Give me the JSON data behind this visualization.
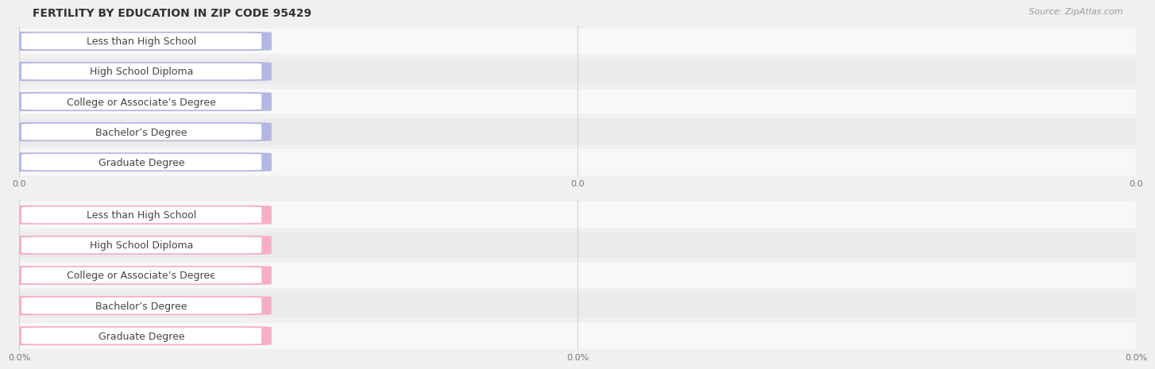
{
  "title": "FERTILITY BY EDUCATION IN ZIP CODE 95429",
  "source_text": "Source: ZipAtlas.com",
  "categories": [
    "Less than High School",
    "High School Diploma",
    "College or Associate’s Degree",
    "Bachelor’s Degree",
    "Graduate Degree"
  ],
  "top_values": [
    0.0,
    0.0,
    0.0,
    0.0,
    0.0
  ],
  "bottom_values": [
    0.0,
    0.0,
    0.0,
    0.0,
    0.0
  ],
  "top_bar_color": "#b3b7e3",
  "top_dot_color": "#8080cc",
  "bottom_bar_color": "#f7aec4",
  "bottom_dot_color": "#e8607a",
  "bg_color": "#f0f0f0",
  "row_bg_light": "#f8f8f8",
  "row_bg_dark": "#ebebeb",
  "grid_color": "#d0d0d0",
  "xtick_labels_top": [
    "0.0",
    "0.0",
    "0.0"
  ],
  "xtick_labels_bottom": [
    "0.0%",
    "0.0%",
    "0.0%"
  ],
  "title_fontsize": 10,
  "label_fontsize": 9,
  "value_fontsize": 8.5,
  "source_fontsize": 8,
  "tick_fontsize": 8
}
